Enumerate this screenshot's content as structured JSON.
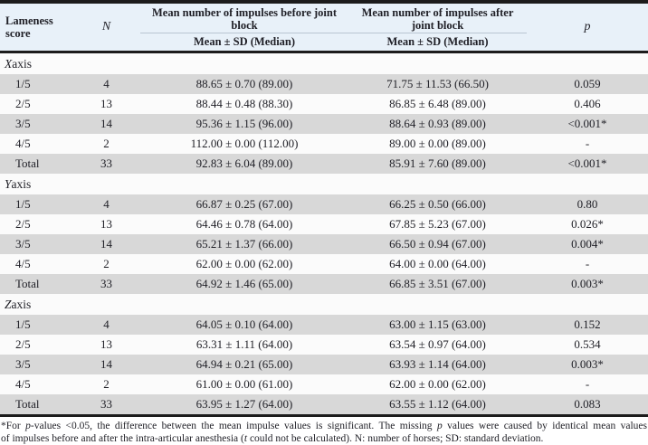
{
  "table": {
    "header": {
      "lameness_score": "Lameness score",
      "n": "N",
      "before_title": "Mean number of impulses before joint block",
      "after_title": "Mean number of impulses after joint block",
      "mean_sd_label": "Mean ± SD (Median)",
      "mean_sd_label_2": "Mean ± SD (Median)",
      "p": "p"
    },
    "sections": [
      {
        "axis_letter": "X",
        "axis_suffix": " axis",
        "rows": [
          {
            "score": "1/5",
            "n": "4",
            "before": "88.65 ± 0.70 (89.00)",
            "after": "71.75 ± 11.53 (66.50)",
            "p": "0.059"
          },
          {
            "score": "2/5",
            "n": "13",
            "before": "88.44 ± 0.48 (88.30)",
            "after": "86.85 ± 6.48 (89.00)",
            "p": "0.406"
          },
          {
            "score": "3/5",
            "n": "14",
            "before": "95.36 ± 1.15 (96.00)",
            "after": "88.64 ± 0.93 (89.00)",
            "p": "<0.001*"
          },
          {
            "score": "4/5",
            "n": "2",
            "before": "112.00 ± 0.00 (112.00)",
            "after": "89.00 ± 0.00 (89.00)",
            "p": "-"
          },
          {
            "score": "Total",
            "n": "33",
            "before": "92.83 ± 6.04 (89.00)",
            "after": "85.91 ± 7.60 (89.00)",
            "p": "<0.001*"
          }
        ]
      },
      {
        "axis_letter": "Y",
        "axis_suffix": " axis",
        "rows": [
          {
            "score": "1/5",
            "n": "4",
            "before": "66.87 ± 0.25 (67.00)",
            "after": "66.25 ± 0.50 (66.00)",
            "p": "0.80"
          },
          {
            "score": "2/5",
            "n": "13",
            "before": "64.46 ± 0.78 (64.00)",
            "after": "67.85 ± 5.23 (67.00)",
            "p": "0.026*"
          },
          {
            "score": "3/5",
            "n": "14",
            "before": "65.21 ± 1.37 (66.00)",
            "after": "66.50 ± 0.94 (67.00)",
            "p": "0.004*"
          },
          {
            "score": "4/5",
            "n": "2",
            "before": "62.00 ± 0.00 (62.00)",
            "after": "64.00 ± 0.00 (64.00)",
            "p": "-"
          },
          {
            "score": "Total",
            "n": "33",
            "before": "64.92 ± 1.46 (65.00)",
            "after": "66.85 ± 3.51 (67.00)",
            "p": "0.003*"
          }
        ]
      },
      {
        "axis_letter": "Z",
        "axis_suffix": " axis",
        "rows": [
          {
            "score": "1/5",
            "n": "4",
            "before": "64.05 ± 0.10 (64.00)",
            "after": "63.00 ± 1.15 (63.00)",
            "p": "0.152"
          },
          {
            "score": "2/5",
            "n": "13",
            "before": "63.31 ± 1.11 (64.00)",
            "after": "63.54 ± 0.97 (64.00)",
            "p": "0.534"
          },
          {
            "score": "3/5",
            "n": "14",
            "before": "64.94 ± 0.21 (65.00)",
            "after": "63.93 ± 1.14 (64.00)",
            "p": "0.003*"
          },
          {
            "score": "4/5",
            "n": "2",
            "before": "61.00 ± 0.00 (61.00)",
            "after": "62.00 ± 0.00 (62.00)",
            "p": "-"
          },
          {
            "score": "Total",
            "n": "33",
            "before": "63.95 ± 1.27 (64.00)",
            "after": "63.55 ± 1.12 (64.00)",
            "p": "0.083"
          }
        ]
      }
    ]
  },
  "footnote": {
    "line1_segments": [
      {
        "text": "*For ",
        "italic": false
      },
      {
        "text": "p",
        "italic": true
      },
      {
        "text": "-values <0.05, the difference between the mean impulse values is significant. The missing ",
        "italic": false
      },
      {
        "text": "p",
        "italic": true
      },
      {
        "text": " values were caused by identical mean values",
        "italic": false
      }
    ],
    "line2_segments": [
      {
        "text": "of impulses before and after the intra-articular anesthesia (",
        "italic": false
      },
      {
        "text": "t",
        "italic": true
      },
      {
        "text": " could not be calculated). N: number of horses; SD: standard deviation.",
        "italic": false
      }
    ]
  },
  "colors": {
    "header_bg": "#e8f1f9",
    "row_shaded": "#d8d8d8",
    "row_plain": "#fbfbfb",
    "border": "#1c1c1c",
    "header_rule": "#b9c6d2",
    "text": "#1f1f26"
  }
}
